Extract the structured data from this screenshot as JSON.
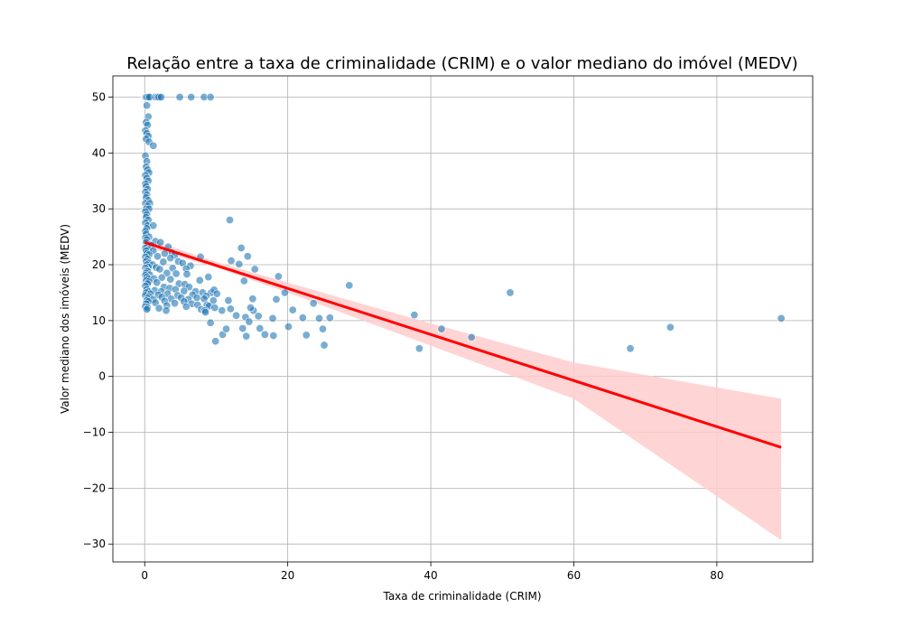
{
  "chart_data": {
    "type": "scatter",
    "title": "Relação entre a taxa de criminalidade (CRIM) e o valor mediano do imóvel (MEDV)",
    "xlabel": "Taxa de criminalidade (CRIM)",
    "ylabel": "Valor mediano dos imóveis (MEDV)",
    "xlim": [
      -4.45,
      93.4
    ],
    "ylim": [
      -33.2,
      53.8
    ],
    "xticks": [
      0,
      20,
      40,
      60,
      80
    ],
    "yticks": [
      -30,
      -20,
      -10,
      0,
      10,
      20,
      30,
      40,
      50
    ],
    "xtick_labels": [
      "0",
      "20",
      "40",
      "60",
      "80"
    ],
    "ytick_labels": [
      "−30",
      "−20",
      "−10",
      "0",
      "10",
      "20",
      "30",
      "40",
      "50"
    ],
    "grid": true,
    "colors": {
      "points": "#1f77b4",
      "regression": "#ff0000",
      "confidence_band": "#ffcccc"
    },
    "regression": {
      "x_start": 0.0,
      "y_start": 24.0,
      "x_end": 89.0,
      "y_end": -12.7
    },
    "confidence_band": [
      {
        "x": 0.0,
        "lower": 23.2,
        "upper": 24.9
      },
      {
        "x": 10.0,
        "lower": 19.5,
        "upper": 20.5
      },
      {
        "x": 20.0,
        "lower": 15.0,
        "upper": 16.8
      },
      {
        "x": 40.0,
        "lower": 5.5,
        "upper": 9.5
      },
      {
        "x": 60.0,
        "lower": -4.0,
        "upper": 2.5
      },
      {
        "x": 89.0,
        "lower": -29.3,
        "upper": -4.0
      }
    ],
    "points": [
      [
        0.01,
        50
      ],
      [
        0.05,
        50
      ],
      [
        0.1,
        50
      ],
      [
        0.2,
        50
      ],
      [
        0.3,
        50
      ],
      [
        0.5,
        50
      ],
      [
        0.7,
        50
      ],
      [
        1.5,
        50
      ],
      [
        1.8,
        50
      ],
      [
        2.0,
        50
      ],
      [
        2.3,
        50
      ],
      [
        4.9,
        50
      ],
      [
        6.5,
        50
      ],
      [
        8.3,
        50
      ],
      [
        9.2,
        50
      ],
      [
        0.3,
        48.5
      ],
      [
        0.5,
        46.5
      ],
      [
        0.2,
        45.5
      ],
      [
        0.4,
        45.0
      ],
      [
        0.1,
        44.0
      ],
      [
        0.3,
        43.5
      ],
      [
        0.5,
        43.0
      ],
      [
        0.2,
        42.5
      ],
      [
        0.6,
        42.0
      ],
      [
        1.2,
        41.3
      ],
      [
        0.1,
        39.5
      ],
      [
        0.3,
        38.5
      ],
      [
        0.2,
        37.5
      ],
      [
        0.4,
        37.0
      ],
      [
        0.6,
        36.5
      ],
      [
        0.1,
        36.0
      ],
      [
        0.3,
        35.5
      ],
      [
        0.5,
        35.0
      ],
      [
        0.1,
        34.5
      ],
      [
        0.2,
        34.0
      ],
      [
        0.4,
        33.5
      ],
      [
        0.1,
        33.0
      ],
      [
        0.3,
        32.5
      ],
      [
        0.2,
        32.0
      ],
      [
        0.5,
        31.5
      ],
      [
        0.1,
        31.0
      ],
      [
        0.7,
        31.0
      ],
      [
        0.4,
        30.5
      ],
      [
        0.2,
        30.0
      ],
      [
        0.6,
        30.0
      ],
      [
        0.1,
        29.5
      ],
      [
        0.3,
        29.0
      ],
      [
        0.2,
        28.5
      ],
      [
        0.5,
        28.0
      ],
      [
        0.1,
        27.5
      ],
      [
        0.4,
        27.0
      ],
      [
        1.2,
        27.0
      ],
      [
        0.3,
        26.5
      ],
      [
        0.1,
        26.0
      ],
      [
        0.2,
        25.5
      ],
      [
        0.6,
        25.0
      ],
      [
        0.1,
        24.8
      ],
      [
        0.3,
        24.5
      ],
      [
        1.5,
        24.2
      ],
      [
        2.2,
        24.0
      ],
      [
        0.2,
        24.0
      ],
      [
        0.8,
        23.6
      ],
      [
        1.0,
        23.5
      ],
      [
        0.4,
        23.2
      ],
      [
        3.3,
        23.2
      ],
      [
        0.1,
        23.0
      ],
      [
        0.5,
        22.7
      ],
      [
        0.2,
        22.5
      ],
      [
        1.2,
        22.5
      ],
      [
        2.8,
        22.0
      ],
      [
        3.8,
        22.2
      ],
      [
        0.3,
        22.0
      ],
      [
        0.6,
        21.8
      ],
      [
        4.2,
        21.7
      ],
      [
        1.8,
        21.5
      ],
      [
        0.1,
        21.4
      ],
      [
        3.6,
        21.2
      ],
      [
        7.8,
        21.4
      ],
      [
        0.4,
        21.0
      ],
      [
        0.2,
        20.6
      ],
      [
        2.6,
        20.5
      ],
      [
        4.7,
        20.6
      ],
      [
        0.6,
        20.3
      ],
      [
        5.3,
        20.3
      ],
      [
        0.3,
        20.0
      ],
      [
        1.1,
        20.0
      ],
      [
        6.4,
        19.8
      ],
      [
        0.5,
        19.6
      ],
      [
        1.6,
        19.5
      ],
      [
        3.9,
        19.4
      ],
      [
        0.1,
        19.4
      ],
      [
        5.8,
        19.3
      ],
      [
        0.3,
        19.0
      ],
      [
        2.1,
        19.2
      ],
      [
        0.4,
        18.8
      ],
      [
        0.2,
        18.5
      ],
      [
        0.7,
        18.2
      ],
      [
        3.1,
        18.5
      ],
      [
        4.4,
        18.4
      ],
      [
        5.9,
        18.3
      ],
      [
        0.1,
        18.1
      ],
      [
        0.3,
        17.8
      ],
      [
        0.5,
        17.5
      ],
      [
        1.3,
        17.5
      ],
      [
        2.4,
        17.7
      ],
      [
        3.6,
        17.4
      ],
      [
        0.2,
        17.2
      ],
      [
        7.7,
        17.2
      ],
      [
        8.9,
        17.8
      ],
      [
        0.6,
        17.0
      ],
      [
        1.7,
        16.8
      ],
      [
        0.4,
        16.6
      ],
      [
        4.8,
        16.6
      ],
      [
        5.6,
        16.5
      ],
      [
        0.1,
        16.2
      ],
      [
        2.7,
        16.0
      ],
      [
        3.5,
        15.8
      ],
      [
        6.2,
        16.0
      ],
      [
        0.3,
        15.6
      ],
      [
        1.4,
        15.4
      ],
      [
        4.3,
        15.6
      ],
      [
        0.5,
        15.2
      ],
      [
        2.3,
        15.2
      ],
      [
        5.5,
        15.3
      ],
      [
        7.1,
        15.2
      ],
      [
        0.2,
        15.0
      ],
      [
        8.1,
        15.0
      ],
      [
        9.3,
        15.0
      ],
      [
        0.8,
        14.8
      ],
      [
        1.9,
        14.6
      ],
      [
        3.2,
        14.8
      ],
      [
        6.7,
        14.6
      ],
      [
        0.1,
        14.5
      ],
      [
        4.6,
        14.5
      ],
      [
        8.6,
        14.4
      ],
      [
        0.6,
        14.3
      ],
      [
        2.4,
        14.2
      ],
      [
        5.1,
        14.1
      ],
      [
        7.3,
        14.1
      ],
      [
        0.4,
        14.0
      ],
      [
        1.2,
        13.8
      ],
      [
        3.7,
        13.9
      ],
      [
        6.1,
        13.8
      ],
      [
        8.3,
        13.9
      ],
      [
        0.3,
        13.6
      ],
      [
        2.8,
        13.5
      ],
      [
        9.6,
        13.6
      ],
      [
        0.5,
        13.4
      ],
      [
        5.5,
        13.4
      ],
      [
        1.5,
        13.2
      ],
      [
        4.2,
        13.1
      ],
      [
        6.6,
        13.0
      ],
      [
        0.2,
        13.0
      ],
      [
        7.4,
        12.8
      ],
      [
        8.7,
        12.8
      ],
      [
        0.1,
        12.5
      ],
      [
        3.1,
        12.7
      ],
      [
        5.8,
        12.5
      ],
      [
        9.0,
        12.6
      ],
      [
        0.4,
        12.3
      ],
      [
        2.0,
        12.2
      ],
      [
        7.9,
        12.0
      ],
      [
        9.8,
        12.3
      ],
      [
        0.3,
        12.0
      ],
      [
        8.4,
        11.8
      ],
      [
        3.0,
        11.8
      ],
      [
        8.5,
        11.5
      ],
      [
        9.7,
        15.5
      ],
      [
        10.1,
        14.8
      ],
      [
        9.2,
        9.6
      ],
      [
        10.8,
        11.8
      ],
      [
        11.7,
        13.6
      ],
      [
        11.9,
        28.0
      ],
      [
        12.1,
        20.7
      ],
      [
        12.8,
        10.9
      ],
      [
        13.2,
        20.1
      ],
      [
        13.5,
        23.0
      ],
      [
        13.7,
        8.6
      ],
      [
        13.9,
        17.1
      ],
      [
        14.1,
        10.6
      ],
      [
        14.2,
        7.2
      ],
      [
        14.4,
        21.5
      ],
      [
        14.6,
        9.8
      ],
      [
        15.1,
        13.9
      ],
      [
        15.2,
        11.8
      ],
      [
        15.4,
        19.2
      ],
      [
        15.9,
        10.8
      ],
      [
        14.8,
        12.3
      ],
      [
        9.9,
        6.3
      ],
      [
        10.9,
        7.5
      ],
      [
        11.4,
        8.5
      ],
      [
        12.0,
        12.1
      ],
      [
        16.1,
        8.6
      ],
      [
        16.8,
        7.5
      ],
      [
        17.9,
        10.4
      ],
      [
        18.0,
        7.3
      ],
      [
        18.4,
        13.8
      ],
      [
        18.7,
        17.9
      ],
      [
        19.6,
        15.0
      ],
      [
        20.1,
        8.9
      ],
      [
        20.7,
        11.9
      ],
      [
        22.1,
        10.5
      ],
      [
        22.6,
        7.4
      ],
      [
        23.6,
        13.1
      ],
      [
        24.4,
        10.4
      ],
      [
        24.9,
        8.5
      ],
      [
        25.1,
        5.6
      ],
      [
        25.9,
        10.5
      ],
      [
        28.6,
        16.3
      ],
      [
        37.7,
        11.0
      ],
      [
        38.4,
        5.0
      ],
      [
        41.5,
        8.5
      ],
      [
        45.7,
        7.0
      ],
      [
        51.1,
        15.0
      ],
      [
        67.9,
        5.0
      ],
      [
        73.5,
        8.8
      ],
      [
        89.0,
        10.4
      ]
    ]
  }
}
